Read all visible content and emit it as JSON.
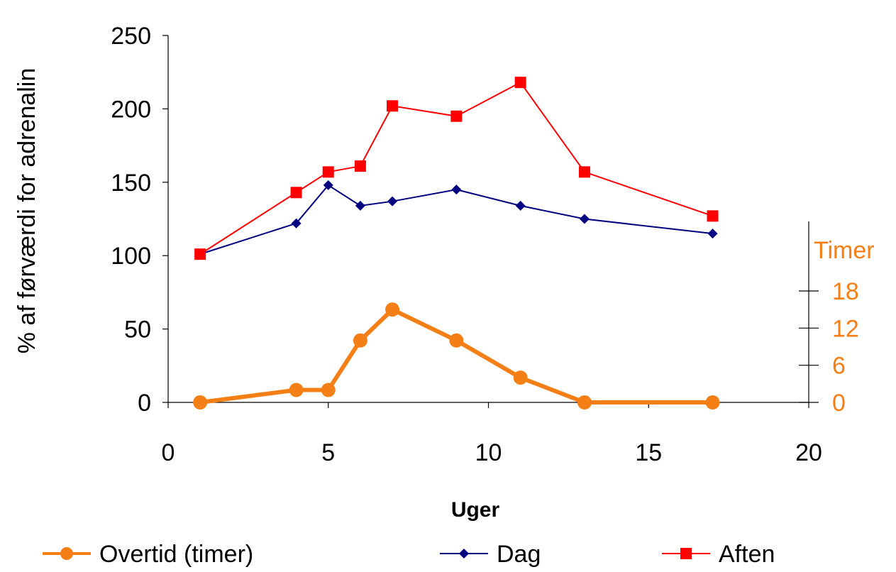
{
  "chart_data": {
    "type": "line",
    "xlabel": "Uger",
    "ylabel": "% af førværdi for adrenalin",
    "y2label": "Timer",
    "xlim": [
      0,
      20
    ],
    "ylim": [
      0,
      250
    ],
    "y2lim": [
      0,
      18
    ],
    "x_ticks": [
      "0",
      "5",
      "10",
      "15",
      "20"
    ],
    "y_ticks": [
      "0",
      "50",
      "100",
      "150",
      "200",
      "250"
    ],
    "y2_ticks": [
      "0",
      "6",
      "12",
      "18"
    ],
    "grid": false,
    "legend_position": "bottom",
    "series": [
      {
        "name": "Overtid (timer)",
        "axis": "right",
        "color": "#f57f17",
        "marker": "circle",
        "x": [
          1,
          4,
          5,
          6,
          7,
          9,
          11,
          13,
          17
        ],
        "y": [
          0,
          2,
          2,
          10,
          15,
          10,
          4,
          0,
          0
        ]
      },
      {
        "name": "Dag",
        "axis": "left",
        "color": "#000080",
        "marker": "diamond",
        "x": [
          1,
          4,
          5,
          6,
          7,
          9,
          11,
          13,
          17
        ],
        "y": [
          101,
          122,
          148,
          134,
          137,
          145,
          134,
          125,
          115
        ]
      },
      {
        "name": "Aften",
        "axis": "left",
        "color": "#ff0000",
        "marker": "square",
        "x": [
          1,
          4,
          5,
          6,
          7,
          9,
          11,
          13,
          17
        ],
        "y": [
          101,
          143,
          157,
          161,
          202,
          195,
          218,
          157,
          127
        ]
      }
    ]
  }
}
